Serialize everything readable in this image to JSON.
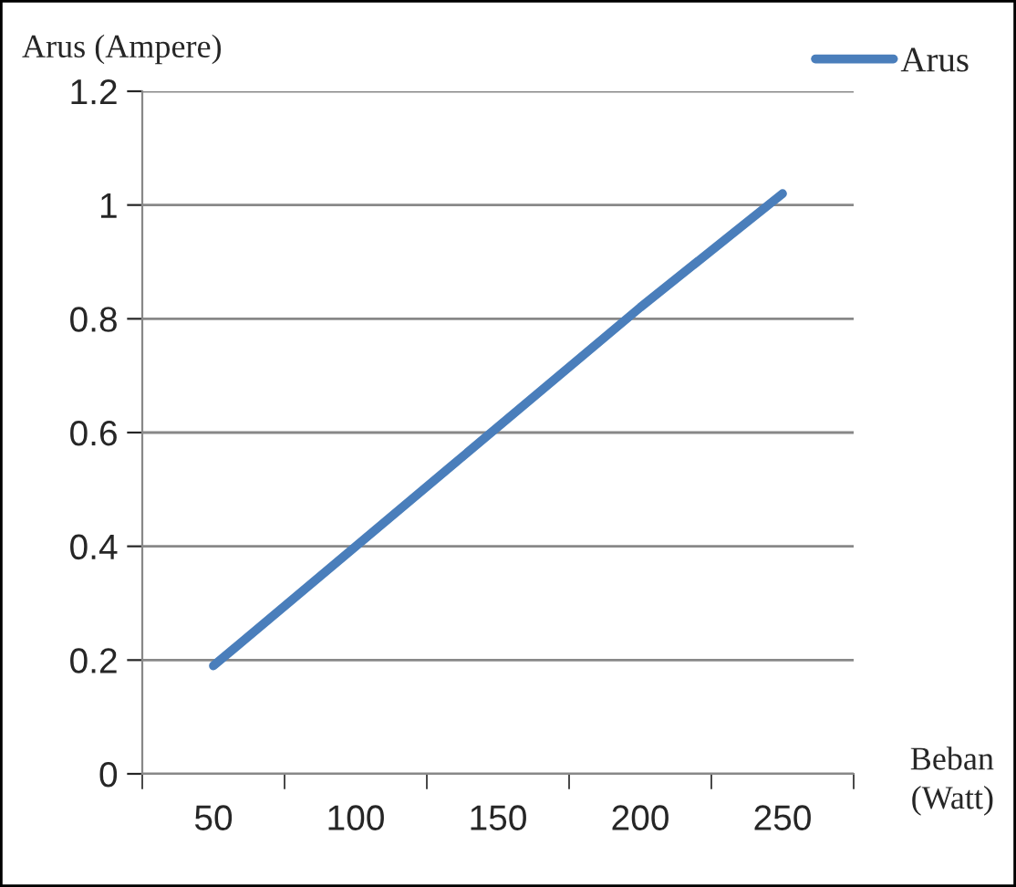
{
  "chart_data": {
    "type": "line",
    "ylabel": "Arus (Ampere)",
    "xlabel": "Beban\n(Watt)",
    "categories": [
      "50",
      "100",
      "150",
      "200",
      "250"
    ],
    "series": [
      {
        "name": "Arus",
        "color": "#4a7ebb",
        "values": [
          0.19,
          0.4,
          0.61,
          0.82,
          1.02
        ]
      }
    ],
    "ylim": [
      0,
      1.2
    ],
    "yticks": [
      0,
      0.2,
      0.4,
      0.6,
      0.8,
      1,
      1.2
    ],
    "grid": "y",
    "legend": "top right",
    "marker": "none",
    "line_style": "solid"
  }
}
